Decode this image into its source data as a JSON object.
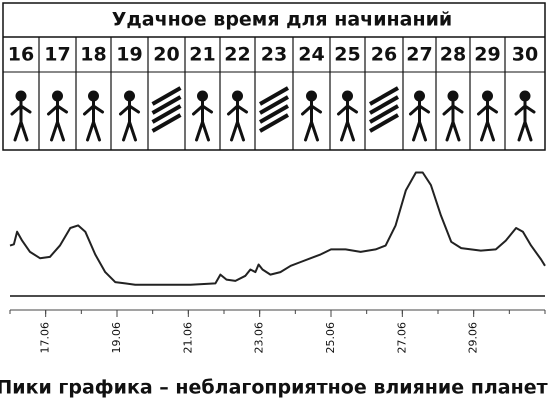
{
  "chart_data": {
    "type": "line",
    "title": "Удачное время для начинаний",
    "days": [
      "16",
      "17",
      "18",
      "19",
      "20",
      "21",
      "22",
      "23",
      "24",
      "25",
      "26",
      "27",
      "28",
      "29",
      "30"
    ],
    "x": [
      16.0,
      16.11,
      16.2,
      16.34,
      16.56,
      16.84,
      17.12,
      17.4,
      17.69,
      17.91,
      18.11,
      18.39,
      18.67,
      18.95,
      19.23,
      19.51,
      20.21,
      21.06,
      21.76,
      21.9,
      22.07,
      22.32,
      22.6,
      22.74,
      22.88,
      22.97,
      23.08,
      23.3,
      23.58,
      23.87,
      24.15,
      24.43,
      24.71,
      25.0,
      25.41,
      25.83,
      26.25,
      26.53,
      26.81,
      27.1,
      27.38,
      27.57,
      27.8,
      28.08,
      28.37,
      28.65,
      29.2,
      29.62,
      29.9,
      30.19,
      30.38,
      30.61,
      30.89,
      31.0
    ],
    "values": [
      40,
      41,
      51,
      44,
      35,
      30,
      31,
      40,
      54,
      56,
      51,
      33,
      19,
      11,
      10,
      9,
      9,
      9,
      10,
      17,
      13,
      12,
      16,
      21,
      19,
      25,
      21,
      17,
      19,
      24,
      27,
      30,
      33,
      37,
      37,
      35,
      37,
      40,
      56,
      84,
      98,
      98,
      88,
      64,
      43,
      38,
      36,
      37,
      44,
      54,
      51,
      40,
      29,
      24
    ],
    "color": "#222222",
    "xlim": [
      16,
      31
    ],
    "ylim": [
      0,
      100
    ],
    "xticks": [
      {
        "value": 17,
        "label": "17.06"
      },
      {
        "value": 19,
        "label": "19.06"
      },
      {
        "value": 21,
        "label": "21.06"
      },
      {
        "value": 23,
        "label": "23.06"
      },
      {
        "value": 25,
        "label": "25.06"
      },
      {
        "value": 27,
        "label": "27.06"
      },
      {
        "value": 29,
        "label": "29.06"
      }
    ],
    "caption": "Пики графика – неблагоприятное влияние планет"
  }
}
